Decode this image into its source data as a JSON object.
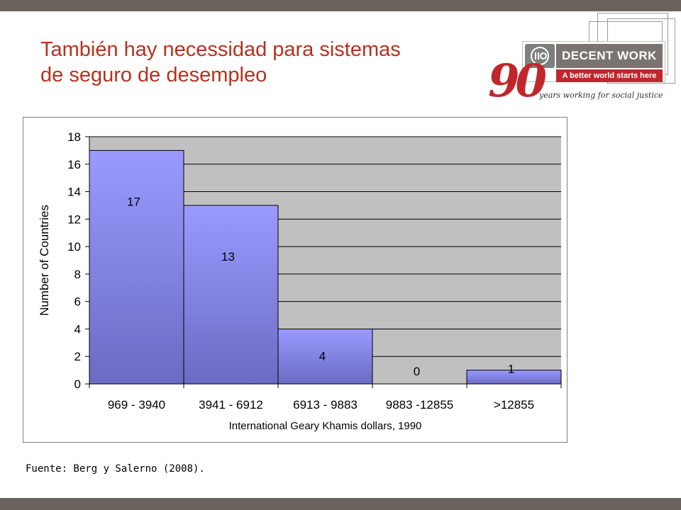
{
  "slide": {
    "title_line1": "También hay necessidad para sistemas",
    "title_line2": "de seguro de desempleo",
    "source": "Fuente: Berg y Salerno (2008)."
  },
  "logo": {
    "label": "DECENT WORK",
    "tagline": "A better world starts here",
    "anniversary": "90",
    "subtitle": "years working for social justice"
  },
  "colors": {
    "title": "#b5321e",
    "band": "#6b625d",
    "bar_top": "#9a9aff",
    "bar_bottom": "#6b6bc4",
    "plot_bg": "#c0c0c0",
    "logo_red": "#c0272d"
  },
  "chart_data": {
    "type": "bar",
    "categories": [
      "969 - 3940",
      "3941 - 6912",
      "6913 - 9883",
      "9883 -12855",
      ">12855"
    ],
    "values": [
      17,
      13,
      4,
      0,
      1
    ],
    "data_labels": [
      "17",
      "13",
      "4",
      "0",
      "1"
    ],
    "title": "",
    "xlabel": "International Geary Khamis dollars, 1990",
    "ylabel": "Number of Countries",
    "ylim": [
      0,
      18
    ],
    "yticks": [
      0,
      2,
      4,
      6,
      8,
      10,
      12,
      14,
      16,
      18
    ],
    "grid": true,
    "legend": "none"
  }
}
